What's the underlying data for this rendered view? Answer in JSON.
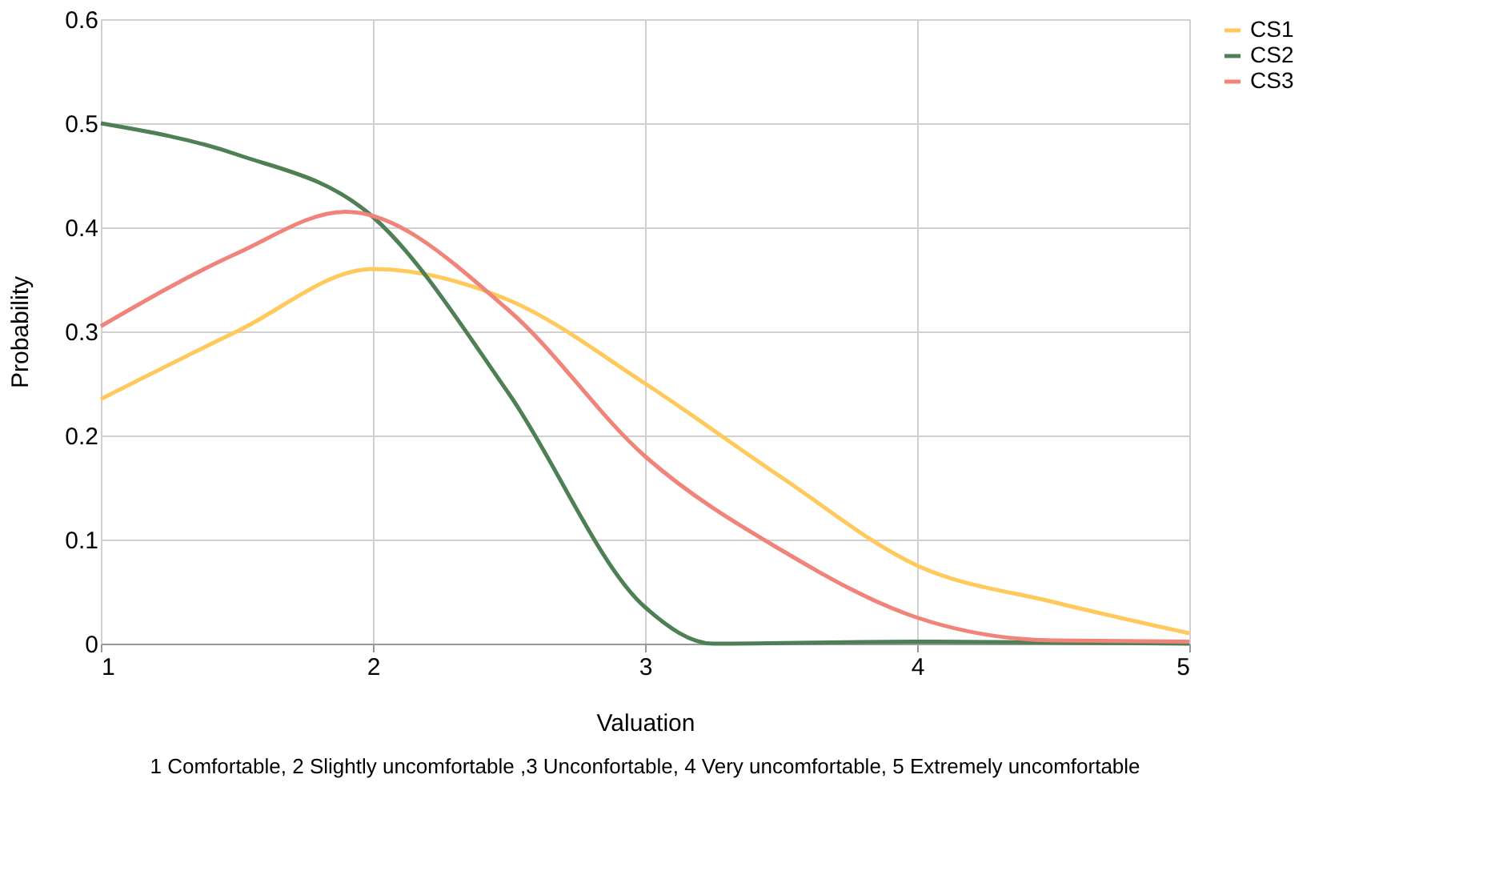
{
  "chart_data": {
    "type": "line",
    "xlabel": "Valuation",
    "ylabel": "Probability",
    "xlim": [
      1,
      5
    ],
    "xticks": [
      1,
      2,
      3,
      4,
      5
    ],
    "ylim": [
      0,
      0.6
    ],
    "yticks": [
      0,
      0.1,
      0.2,
      0.3,
      0.4,
      0.5,
      0.6
    ],
    "grid": true,
    "legend": "right",
    "marker": "none",
    "line_style": "solid",
    "annotations": [
      "1 Comfortable, 2 Slightly uncomfortable ,3 Unconfortable, 4 Very uncomfortable, 5 Extremely uncomfortable"
    ],
    "series": [
      {
        "name": "CS1",
        "color": "#ffc95c",
        "x": [
          1,
          1.5,
          2,
          2.5,
          3,
          3.5,
          4,
          4.5,
          5
        ],
        "values": [
          0.235,
          0.3,
          0.36,
          0.33,
          0.25,
          0.16,
          0.075,
          0.04,
          0.01
        ]
      },
      {
        "name": "CS2",
        "color": "#4f7f55",
        "x": [
          1,
          1.5,
          2,
          2.5,
          3,
          3.25,
          4,
          5
        ],
        "values": [
          0.5,
          0.47,
          0.41,
          0.24,
          0.035,
          0,
          0.002,
          0
        ]
      },
      {
        "name": "CS3",
        "color": "#f0837a",
        "x": [
          1,
          1.5,
          1.9,
          2.5,
          3,
          3.5,
          4,
          4.5,
          5
        ],
        "values": [
          0.305,
          0.375,
          0.415,
          0.32,
          0.18,
          0.09,
          0.025,
          0.003,
          0.002
        ]
      }
    ]
  }
}
